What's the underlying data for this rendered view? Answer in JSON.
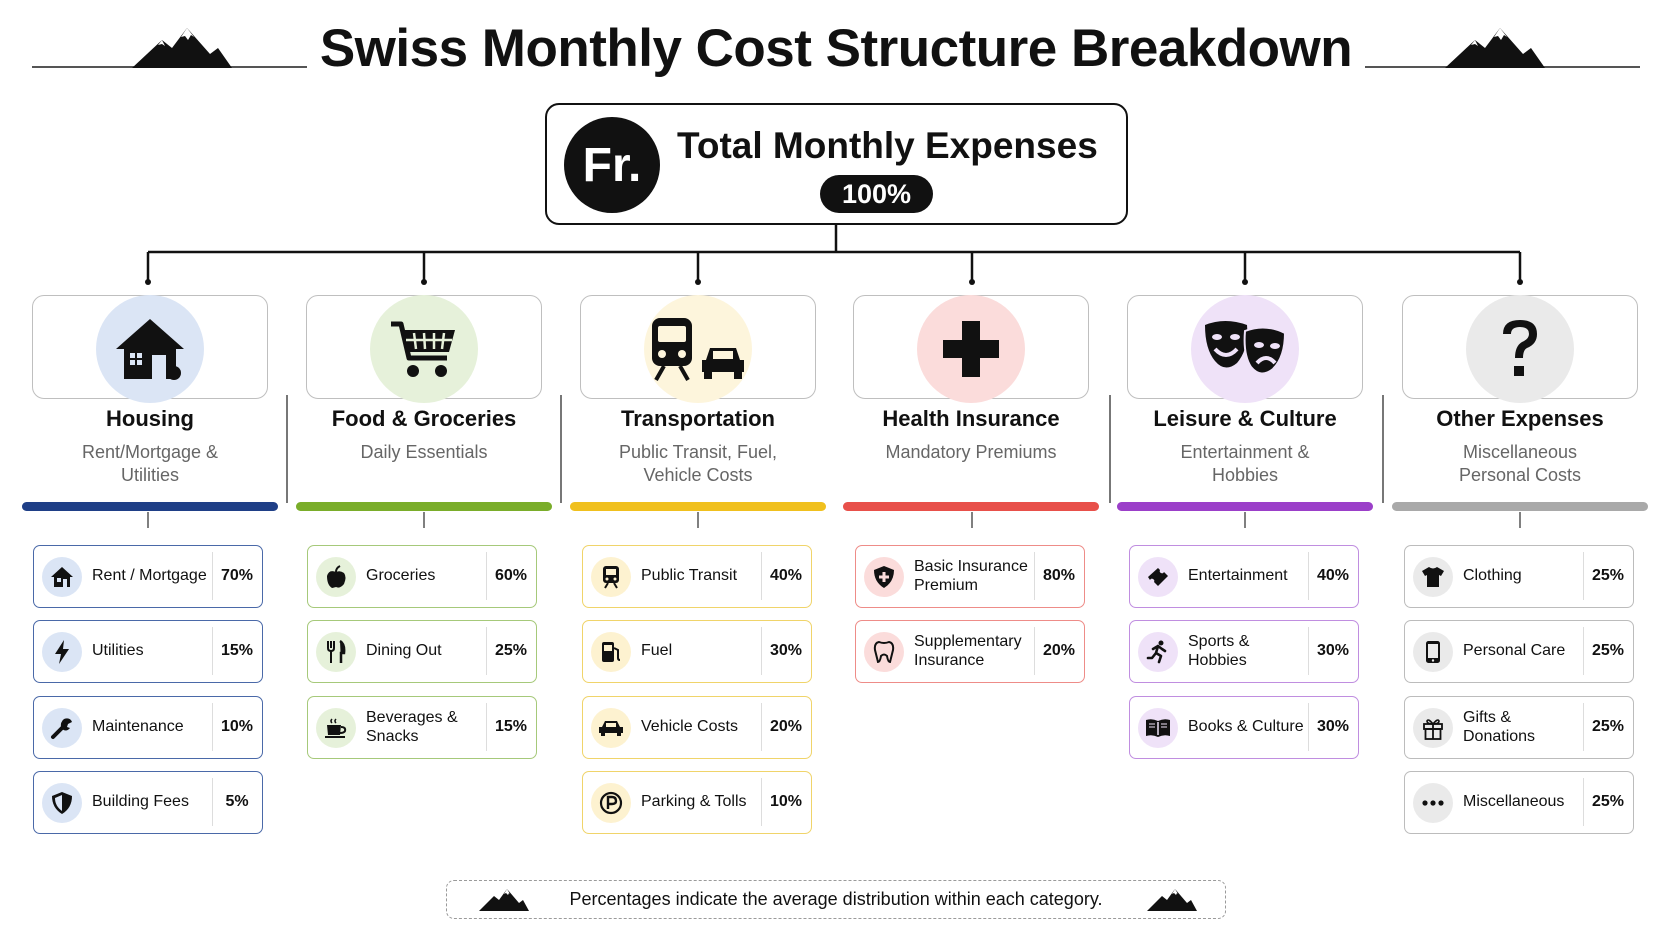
{
  "title": "Swiss Monthly Cost Structure Breakdown",
  "total": {
    "symbol": "Fr.",
    "title": "Total Monthly Expenses",
    "percent": "100%"
  },
  "categories": [
    {
      "name": "Housing",
      "subtitle_1": "Rent/Mortgage &",
      "subtitle_2": "Utilities",
      "accent": "#1f3f87",
      "icon_bg": "#dbe5f5",
      "icon": "house-icon",
      "items": [
        {
          "label_1": "Rent / Mortgage",
          "label_2": "",
          "percent": "70%",
          "icon": "house-icon"
        },
        {
          "label_1": "Utilities",
          "label_2": "",
          "percent": "15%",
          "icon": "lightning-icon"
        },
        {
          "label_1": "Maintenance",
          "label_2": "",
          "percent": "10%",
          "icon": "wrench-icon"
        },
        {
          "label_1": "Building Fees",
          "label_2": "",
          "percent": "5%",
          "icon": "shield-icon"
        }
      ]
    },
    {
      "name": "Food & Groceries",
      "subtitle_1": "Daily Essentials",
      "subtitle_2": "",
      "accent": "#7aad2a",
      "icon_bg": "#e6f1da",
      "icon": "cart-icon",
      "items": [
        {
          "label_1": "Groceries",
          "label_2": "",
          "percent": "60%",
          "icon": "apple-icon"
        },
        {
          "label_1": "Dining Out",
          "label_2": "",
          "percent": "25%",
          "icon": "fork-knife-icon"
        },
        {
          "label_1": "Beverages &",
          "label_2": "Snacks",
          "percent": "15%",
          "icon": "cup-icon"
        }
      ]
    },
    {
      "name": "Transportation",
      "subtitle_1": "Public Transit, Fuel,",
      "subtitle_2": "Vehicle Costs",
      "accent": "#f0c01e",
      "icon_bg": "#fdf5dc",
      "icon": "train-car-icon",
      "items": [
        {
          "label_1": "Public Transit",
          "label_2": "",
          "percent": "40%",
          "icon": "train-icon"
        },
        {
          "label_1": "Fuel",
          "label_2": "",
          "percent": "30%",
          "icon": "fuel-icon"
        },
        {
          "label_1": "Vehicle Costs",
          "label_2": "",
          "percent": "20%",
          "icon": "car-icon"
        },
        {
          "label_1": "Parking & Tolls",
          "label_2": "",
          "percent": "10%",
          "icon": "parking-icon"
        }
      ]
    },
    {
      "name": "Health Insurance",
      "subtitle_1": "Mandatory Premiums",
      "subtitle_2": "",
      "accent": "#e8504a",
      "icon_bg": "#fbdcdb",
      "icon": "cross-icon",
      "items": [
        {
          "label_1": "Basic Insurance",
          "label_2": "Premium",
          "percent": "80%",
          "icon": "shield-plus-icon"
        },
        {
          "label_1": "Supplementary",
          "label_2": "Insurance",
          "percent": "20%",
          "icon": "tooth-icon"
        }
      ]
    },
    {
      "name": "Leisure & Culture",
      "subtitle_1": "Entertainment &",
      "subtitle_2": "Hobbies",
      "accent": "#9b3fc9",
      "icon_bg": "#efe2f8",
      "icon": "theater-masks-icon",
      "items": [
        {
          "label_1": "Entertainment",
          "label_2": "",
          "percent": "40%",
          "icon": "ticket-icon"
        },
        {
          "label_1": "Sports & Hobbies",
          "label_2": "",
          "percent": "30%",
          "icon": "runner-icon"
        },
        {
          "label_1": "Books & Culture",
          "label_2": "",
          "percent": "30%",
          "icon": "book-icon"
        }
      ]
    },
    {
      "name": "Other Expenses",
      "subtitle_1": "Miscellaneous",
      "subtitle_2": "Personal Costs",
      "accent": "#a9a9a9",
      "icon_bg": "#eaeaea",
      "icon": "question-icon",
      "items": [
        {
          "label_1": "Clothing",
          "label_2": "",
          "percent": "25%",
          "icon": "shirt-icon"
        },
        {
          "label_1": "Personal Care",
          "label_2": "",
          "percent": "25%",
          "icon": "phone-icon"
        },
        {
          "label_1": "Gifts & Donations",
          "label_2": "",
          "percent": "25%",
          "icon": "gift-icon"
        },
        {
          "label_1": "Miscellaneous",
          "label_2": "",
          "percent": "25%",
          "icon": "dots-icon"
        }
      ]
    }
  ],
  "footer": "Percentages indicate the average distribution within each category."
}
